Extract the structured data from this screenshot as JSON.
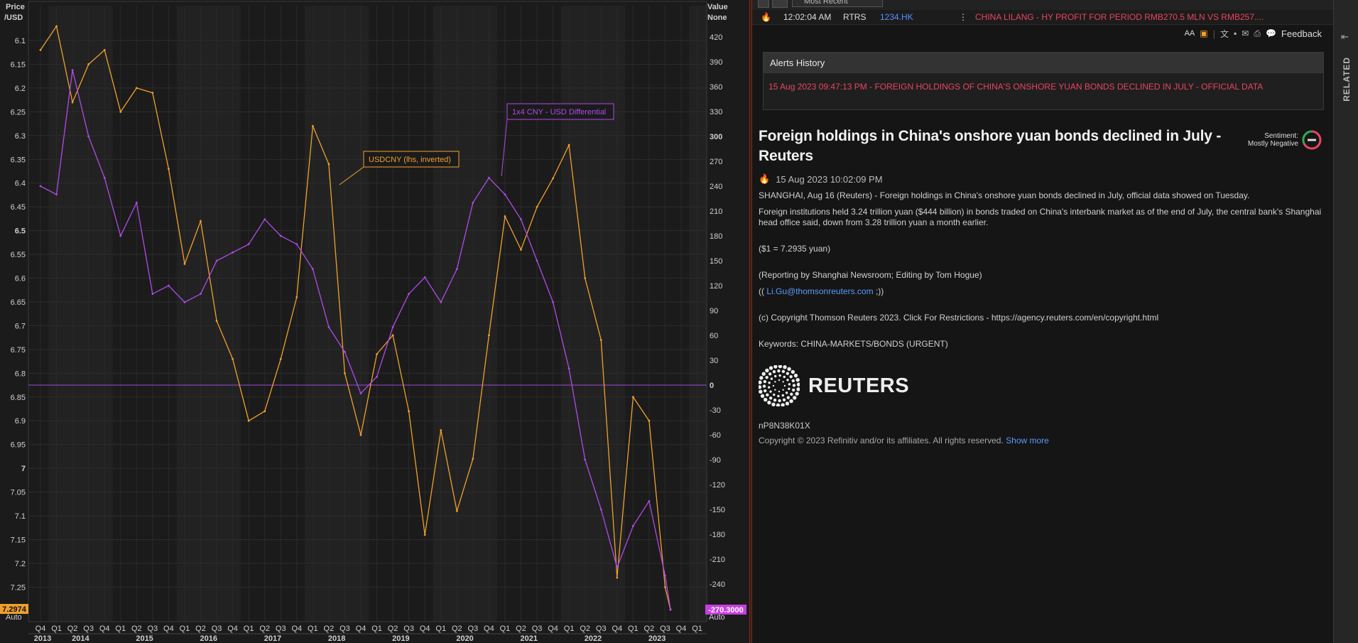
{
  "chart": {
    "left_axis_title": [
      "Price",
      "/USD"
    ],
    "right_axis_title": [
      "Value",
      "None"
    ],
    "left_ticks": [
      "6.1",
      "6.15",
      "6.2",
      "6.25",
      "6.3",
      "6.35",
      "6.4",
      "6.45",
      "6.5",
      "6.55",
      "6.6",
      "6.65",
      "6.7",
      "6.75",
      "6.8",
      "6.85",
      "6.9",
      "6.95",
      "7",
      "7.05",
      "7.1",
      "7.15",
      "7.2",
      "7.25"
    ],
    "right_ticks": [
      "420",
      "390",
      "360",
      "330",
      "300",
      "270",
      "240",
      "210",
      "180",
      "150",
      "120",
      "90",
      "60",
      "30",
      "0",
      "-30",
      "-60",
      "-90",
      "-120",
      "-150",
      "-180",
      "-210",
      "-240",
      "-270"
    ],
    "left_last_value": "7.2974",
    "right_last_value": "-270.3000",
    "left_auto_label": "Auto",
    "right_auto_label": "Auto",
    "x_quarter_labels": [
      "Q4",
      "Q1",
      "Q2",
      "Q3",
      "Q4",
      "Q1",
      "Q2",
      "Q3",
      "Q4",
      "Q1",
      "Q2",
      "Q3",
      "Q4",
      "Q1",
      "Q2",
      "Q3",
      "Q4",
      "Q1",
      "Q2",
      "Q3",
      "Q4",
      "Q1",
      "Q2",
      "Q3",
      "Q4",
      "Q1",
      "Q2",
      "Q3",
      "Q4",
      "Q1",
      "Q2",
      "Q3",
      "Q4",
      "Q1",
      "Q2",
      "Q3",
      "Q4",
      "Q1",
      "Q2",
      "Q3",
      "Q4",
      "Q1"
    ],
    "x_year_labels": [
      "2013",
      "2014",
      "2015",
      "2016",
      "2017",
      "2018",
      "2019",
      "2020",
      "2021",
      "2022",
      "2023"
    ],
    "annotation_usdcny": "USDCNY (lhs, inverted)",
    "annotation_diff": "1x4 CNY - USD Differential",
    "colors": {
      "usdcny": "#f0a12c",
      "differential": "#b04be8",
      "zero_line": "#9b4ad6"
    }
  },
  "chart_data": {
    "type": "line",
    "x": [
      "2013-10",
      "2014-01",
      "2014-04",
      "2014-07",
      "2014-10",
      "2015-01",
      "2015-04",
      "2015-07",
      "2015-10",
      "2016-01",
      "2016-04",
      "2016-07",
      "2016-10",
      "2017-01",
      "2017-04",
      "2017-07",
      "2017-10",
      "2018-01",
      "2018-04",
      "2018-07",
      "2018-10",
      "2019-01",
      "2019-04",
      "2019-07",
      "2019-10",
      "2020-01",
      "2020-04",
      "2020-07",
      "2020-10",
      "2021-01",
      "2021-04",
      "2021-07",
      "2021-10",
      "2022-01",
      "2022-04",
      "2022-07",
      "2022-10",
      "2023-01",
      "2023-04",
      "2023-07",
      "2023-08"
    ],
    "series": [
      {
        "name": "USDCNY (lhs, inverted)",
        "axis": "left",
        "values": [
          6.12,
          6.07,
          6.23,
          6.15,
          6.12,
          6.25,
          6.2,
          6.21,
          6.37,
          6.57,
          6.48,
          6.69,
          6.77,
          6.9,
          6.88,
          6.77,
          6.64,
          6.28,
          6.36,
          6.8,
          6.93,
          6.76,
          6.72,
          6.88,
          7.14,
          6.92,
          7.09,
          6.98,
          6.72,
          6.47,
          6.54,
          6.45,
          6.39,
          6.32,
          6.6,
          6.73,
          7.23,
          6.85,
          6.9,
          7.25,
          7.2974
        ]
      },
      {
        "name": "1x4 CNY - USD Differential",
        "axis": "right",
        "values": [
          240,
          230,
          380,
          300,
          250,
          180,
          220,
          110,
          120,
          100,
          110,
          150,
          160,
          170,
          200,
          180,
          170,
          140,
          70,
          40,
          -10,
          10,
          70,
          110,
          130,
          100,
          140,
          220,
          250,
          230,
          200,
          150,
          100,
          20,
          -90,
          -150,
          -220,
          -170,
          -140,
          -230,
          -270.3
        ]
      }
    ],
    "ylim_left": [
      6.05,
      7.3
    ],
    "ylim_right": [
      -285,
      445
    ],
    "left_axis_inverted": true,
    "annotations": [
      "USDCNY (lhs, inverted)",
      "1x4 CNY - USD Differential"
    ],
    "grid": true
  },
  "news": {
    "toolbar_select": "Most Recent",
    "headline_time": "12:02:04 AM",
    "headline_source": "RTRS",
    "headline_ric": "1234.HK",
    "headline_text": "CHINA LILANG - HY PROFIT FOR PERIOD RMB270.5 MLN VS RMB257....",
    "font_size_label": "AA",
    "feedback_label": "Feedback",
    "alerts_title": "Alerts History",
    "alert_item": "15 Aug 2023 09:47:13 PM - FOREIGN HOLDINGS OF CHINA'S ONSHORE YUAN BONDS DECLINED IN JULY - OFFICIAL DATA",
    "title": "Foreign holdings in China's onshore yuan bonds declined in July - Reuters",
    "sentiment_label": "Sentiment:",
    "sentiment_value": "Mostly Negative",
    "date": "15 Aug 2023 10:02:09 PM",
    "para1": "SHANGHAI, Aug 16 (Reuters) - Foreign holdings in China's onshore yuan bonds declined in July, official data showed on Tuesday.",
    "para2": "Foreign institutions held 3.24 trillion yuan ($444 billion) in bonds traded on China's interbank market as of the end of July, the central bank's Shanghai head office said, down from 3.28 trillion yuan a month earlier.",
    "para3": "($1 = 7.2935 yuan)",
    "para4": "(Reporting by Shanghai Newsroom; Editing by Tom Hogue)",
    "contact_open": "((",
    "contact_email": "Li.Gu@thomsonreuters.com",
    "contact_close": ";))",
    "para5": "(c) Copyright Thomson Reuters 2023. Click For Restrictions - https://agency.reuters.com/en/copyright.html",
    "keywords": "Keywords: CHINA-MARKETS/BONDS (URGENT)",
    "logo_text": "REUTERS",
    "story_id": "nP8N38K01X",
    "copyright": "Copyright © 2023 Refinitiv and/or its affiliates. All rights reserved.",
    "show_more": "Show more",
    "related_tab": "RELATED"
  }
}
